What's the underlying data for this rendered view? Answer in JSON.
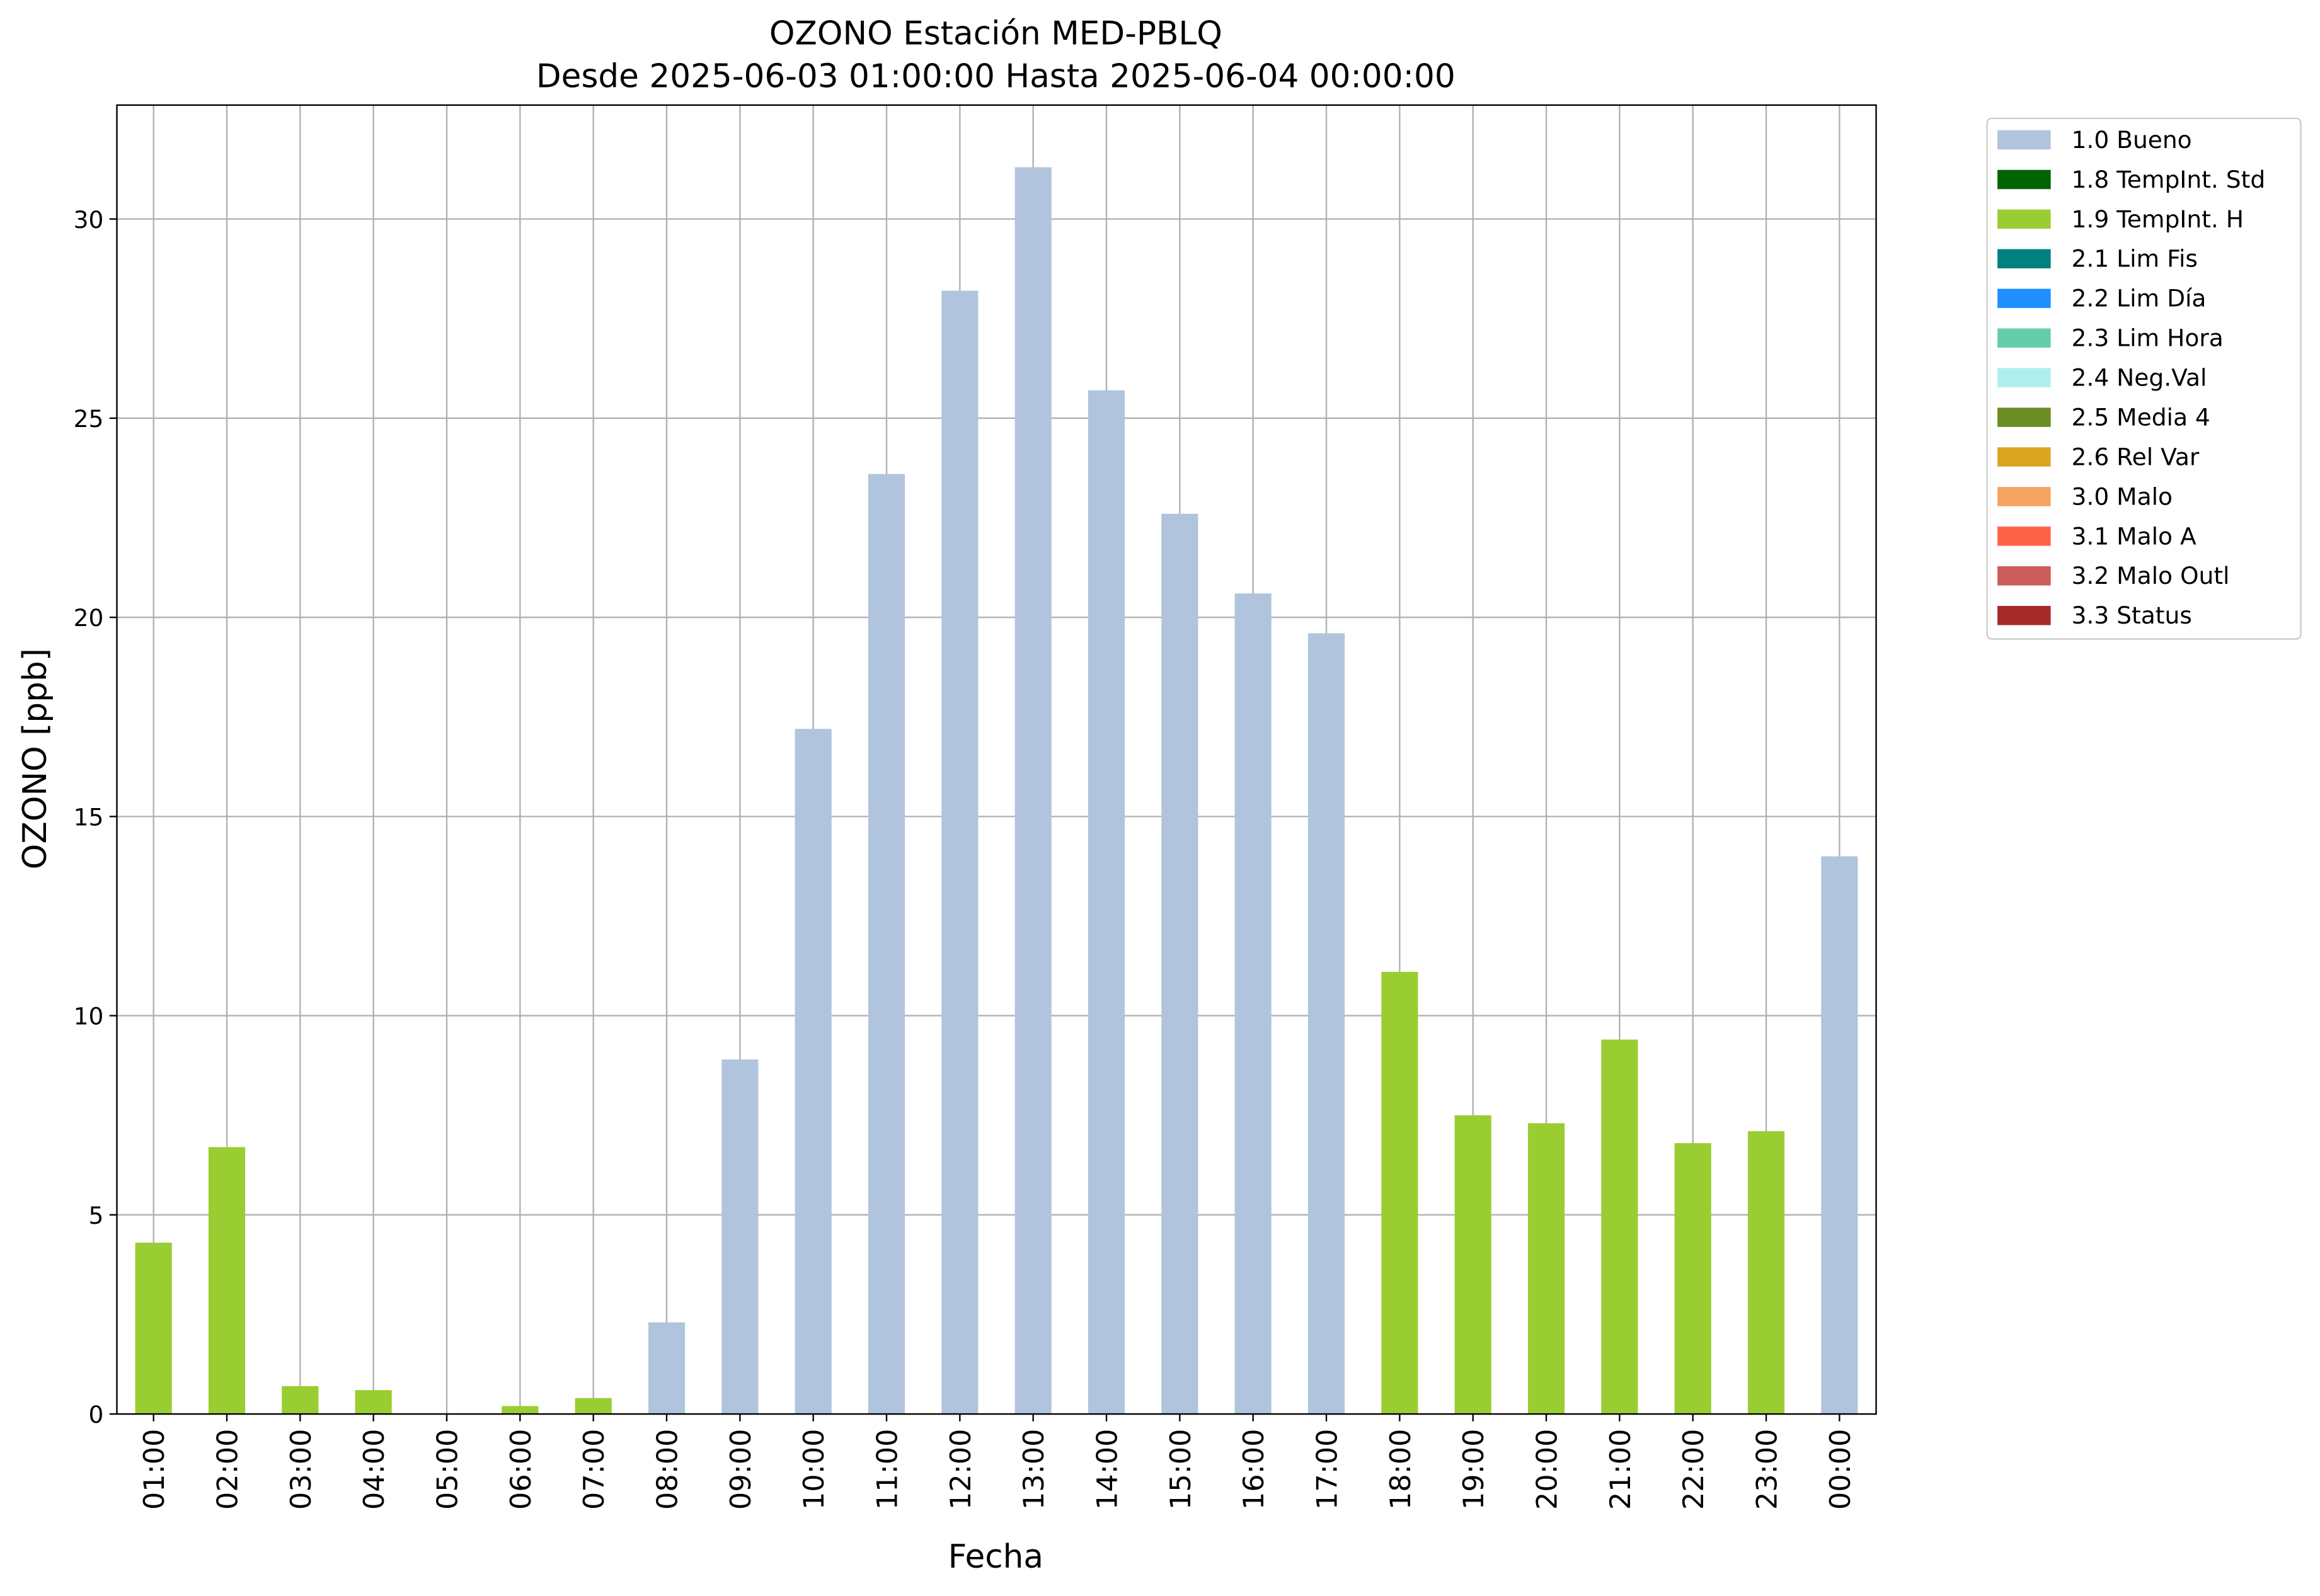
{
  "chart_data": {
    "type": "bar",
    "stacked": true,
    "title": "OZONO Estación MED-PBLQ",
    "subtitle": "Desde 2025-06-03 01:00:00 Hasta 2025-06-04 00:00:00",
    "x_label": "Fecha",
    "y_label": "OZONO [ppb]",
    "categories": [
      "01:00",
      "02:00",
      "03:00",
      "04:00",
      "05:00",
      "06:00",
      "07:00",
      "08:00",
      "09:00",
      "10:00",
      "11:00",
      "12:00",
      "13:00",
      "14:00",
      "15:00",
      "16:00",
      "17:00",
      "18:00",
      "19:00",
      "20:00",
      "21:00",
      "22:00",
      "23:00",
      "00:00"
    ],
    "series": [
      {
        "name": "1.0 Bueno",
        "color": "#b0c4de",
        "values": [
          null,
          null,
          null,
          null,
          null,
          null,
          null,
          2.3,
          8.9,
          17.2,
          23.6,
          28.2,
          31.3,
          25.7,
          22.6,
          20.6,
          19.6,
          null,
          null,
          null,
          null,
          null,
          null,
          14.0
        ]
      },
      {
        "name": "1.8 TempInt. Std",
        "color": "#006400",
        "values": [
          null,
          null,
          null,
          null,
          null,
          null,
          null,
          null,
          null,
          null,
          null,
          null,
          null,
          null,
          null,
          null,
          null,
          null,
          null,
          null,
          null,
          null,
          null,
          null
        ]
      },
      {
        "name": "1.9 TempInt. H",
        "color": "#9acd32",
        "values": [
          4.3,
          6.7,
          0.7,
          0.6,
          null,
          0.2,
          0.4,
          null,
          null,
          null,
          null,
          null,
          null,
          null,
          null,
          null,
          null,
          11.1,
          7.5,
          7.3,
          9.4,
          6.8,
          7.1,
          null
        ]
      },
      {
        "name": "2.1 Lim Fis",
        "color": "#008080",
        "values": [
          null,
          null,
          null,
          null,
          null,
          null,
          null,
          null,
          null,
          null,
          null,
          null,
          null,
          null,
          null,
          null,
          null,
          null,
          null,
          null,
          null,
          null,
          null,
          null
        ]
      },
      {
        "name": "2.2 Lim Día",
        "color": "#1e90ff",
        "values": [
          null,
          null,
          null,
          null,
          null,
          null,
          null,
          null,
          null,
          null,
          null,
          null,
          null,
          null,
          null,
          null,
          null,
          null,
          null,
          null,
          null,
          null,
          null,
          null
        ]
      },
      {
        "name": "2.3 Lim Hora",
        "color": "#66cdaa",
        "values": [
          null,
          null,
          null,
          null,
          null,
          null,
          null,
          null,
          null,
          null,
          null,
          null,
          null,
          null,
          null,
          null,
          null,
          null,
          null,
          null,
          null,
          null,
          null,
          null
        ]
      },
      {
        "name": "2.4 Neg.Val",
        "color": "#afeeee",
        "values": [
          null,
          null,
          null,
          null,
          null,
          null,
          null,
          null,
          null,
          null,
          null,
          null,
          null,
          null,
          null,
          null,
          null,
          null,
          null,
          null,
          null,
          null,
          null,
          null
        ]
      },
      {
        "name": "2.5 Media 4",
        "color": "#6b8e23",
        "values": [
          null,
          null,
          null,
          null,
          null,
          null,
          null,
          null,
          null,
          null,
          null,
          null,
          null,
          null,
          null,
          null,
          null,
          null,
          null,
          null,
          null,
          null,
          null,
          null
        ]
      },
      {
        "name": "2.6 Rel Var",
        "color": "#daa520",
        "values": [
          null,
          null,
          null,
          null,
          null,
          null,
          null,
          null,
          null,
          null,
          null,
          null,
          null,
          null,
          null,
          null,
          null,
          null,
          null,
          null,
          null,
          null,
          null,
          null
        ]
      },
      {
        "name": "3.0 Malo",
        "color": "#f4a460",
        "values": [
          null,
          null,
          null,
          null,
          null,
          null,
          null,
          null,
          null,
          null,
          null,
          null,
          null,
          null,
          null,
          null,
          null,
          null,
          null,
          null,
          null,
          null,
          null,
          null
        ]
      },
      {
        "name": "3.1 Malo A",
        "color": "#ff6347",
        "values": [
          null,
          null,
          null,
          null,
          null,
          null,
          null,
          null,
          null,
          null,
          null,
          null,
          null,
          null,
          null,
          null,
          null,
          null,
          null,
          null,
          null,
          null,
          null,
          null
        ]
      },
      {
        "name": "3.2 Malo Outl",
        "color": "#cd5c5c",
        "values": [
          null,
          null,
          null,
          null,
          null,
          null,
          null,
          null,
          null,
          null,
          null,
          null,
          null,
          null,
          null,
          null,
          null,
          null,
          null,
          null,
          null,
          null,
          null,
          null
        ]
      },
      {
        "name": "3.3 Status",
        "color": "#a52a2a",
        "values": [
          null,
          null,
          null,
          null,
          null,
          null,
          null,
          null,
          null,
          null,
          null,
          null,
          null,
          null,
          null,
          null,
          null,
          null,
          null,
          null,
          null,
          null,
          null,
          null
        ]
      }
    ],
    "ylim": [
      0,
      32.86
    ],
    "yticks": [
      0,
      5,
      10,
      15,
      20,
      25,
      30
    ],
    "grid": true,
    "legend": "outside upper right"
  }
}
